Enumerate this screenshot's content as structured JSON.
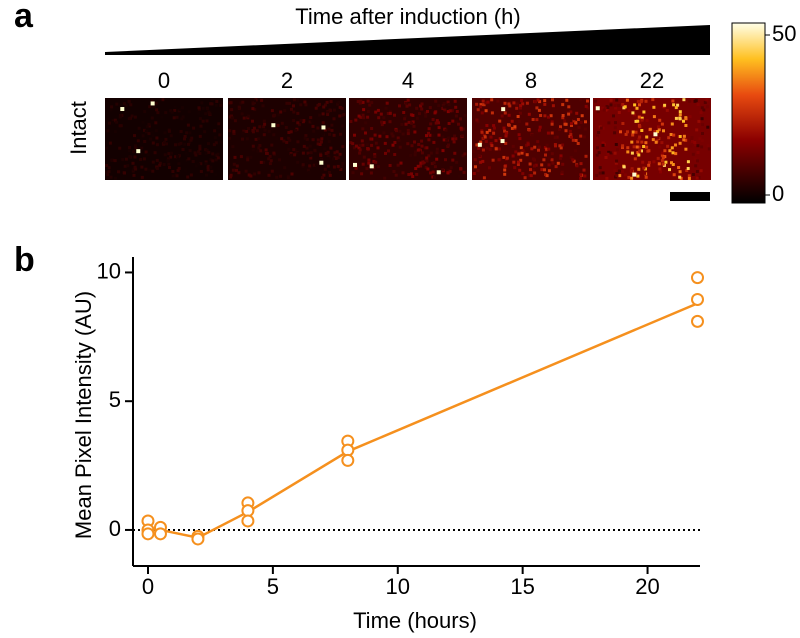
{
  "panel_a": {
    "label": "a",
    "header": "Time after induction (h)",
    "time_labels": [
      0,
      2,
      4,
      8,
      22
    ],
    "row_label": "Intact",
    "colorbar": {
      "lim": [
        -2.5,
        53.75
      ],
      "ticks": [
        50,
        0
      ]
    }
  },
  "chart_data": {
    "type": "scatter",
    "panel_label": "b",
    "x_label": "Time (hours)",
    "y_label": "Mean Pixel Intensity (AU)",
    "color": "#f5901e",
    "points": {
      "x": [
        0,
        0,
        0,
        0.5,
        0.5,
        2,
        2,
        4,
        4,
        4,
        8,
        8,
        8,
        22,
        22,
        22
      ],
      "y": [
        0.35,
        0.0,
        -0.15,
        0.1,
        -0.15,
        -0.25,
        -0.35,
        1.05,
        0.75,
        0.35,
        3.45,
        3.1,
        2.7,
        9.8,
        8.95,
        8.1
      ]
    },
    "mean_line": {
      "x": [
        0,
        0.5,
        2,
        4,
        8,
        22
      ],
      "values": [
        0.05,
        0.0,
        -0.3,
        0.7,
        3.05,
        8.8
      ]
    },
    "reference_line": 0,
    "xlim": [
      -0.6,
      22.1
    ],
    "ylim": [
      -1.4,
      10.6
    ],
    "xticks": [
      0,
      5,
      10,
      15,
      20
    ],
    "yticks": [
      0,
      5,
      10
    ]
  }
}
